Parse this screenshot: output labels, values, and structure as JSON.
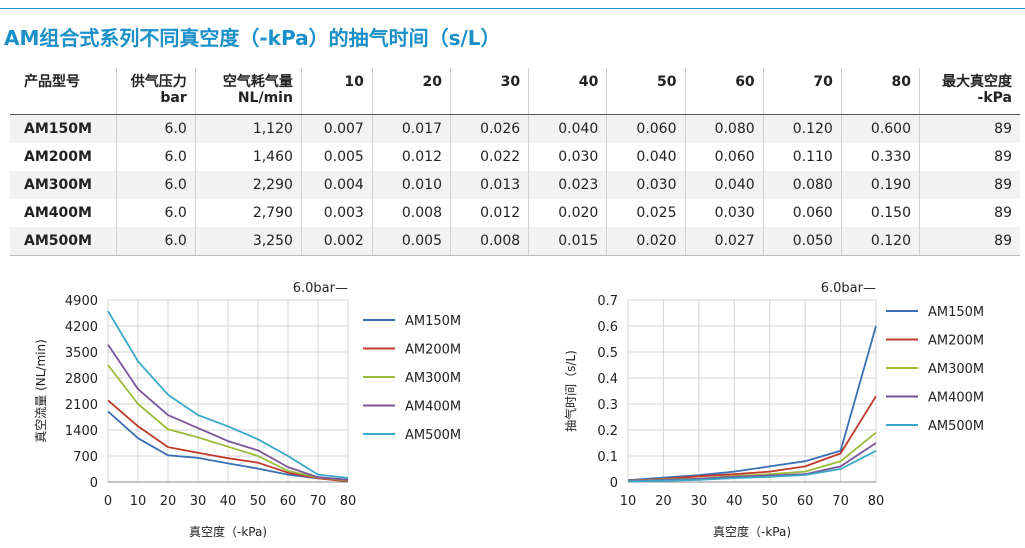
{
  "title": "AM组合式系列不同真空度（-kPa）的抽气时间（s/L）",
  "table": {
    "headers": [
      [
        "产品型号"
      ],
      [
        "供气压力",
        "bar"
      ],
      [
        "空气耗气量",
        "NL/min"
      ],
      [
        "10"
      ],
      [
        "20"
      ],
      [
        "30"
      ],
      [
        "40"
      ],
      [
        "50"
      ],
      [
        "60"
      ],
      [
        "70"
      ],
      [
        "80"
      ],
      [
        "最大真空度",
        "-kPa"
      ]
    ],
    "rows": [
      [
        "AM150M",
        "6.0",
        "1,120",
        "0.007",
        "0.017",
        "0.026",
        "0.040",
        "0.060",
        "0.080",
        "0.120",
        "0.600",
        "89"
      ],
      [
        "AM200M",
        "6.0",
        "1,460",
        "0.005",
        "0.012",
        "0.022",
        "0.030",
        "0.040",
        "0.060",
        "0.110",
        "0.330",
        "89"
      ],
      [
        "AM300M",
        "6.0",
        "2,290",
        "0.004",
        "0.010",
        "0.013",
        "0.023",
        "0.030",
        "0.040",
        "0.080",
        "0.190",
        "89"
      ],
      [
        "AM400M",
        "6.0",
        "2,790",
        "0.003",
        "0.008",
        "0.012",
        "0.020",
        "0.025",
        "0.030",
        "0.060",
        "0.150",
        "89"
      ],
      [
        "AM500M",
        "6.0",
        "3,250",
        "0.002",
        "0.005",
        "0.008",
        "0.015",
        "0.020",
        "0.027",
        "0.050",
        "0.120",
        "89"
      ]
    ]
  },
  "chart_data": [
    {
      "type": "line",
      "title": "6.0bar—",
      "xlabel": "真空度（-kPa)",
      "ylabel": "真空流量 (NL/min)",
      "x": [
        0,
        10,
        20,
        30,
        40,
        50,
        60,
        70,
        80
      ],
      "x_ticks": [
        "0",
        "10",
        "20",
        "30",
        "40",
        "50",
        "60",
        "70",
        "80"
      ],
      "xlim": [
        0,
        80
      ],
      "y_ticks": [
        "0",
        "700",
        "1400",
        "2100",
        "2800",
        "3500",
        "4200",
        "4900"
      ],
      "ylim": [
        0,
        4900
      ],
      "grid": true,
      "legend_position": "right",
      "series": [
        {
          "name": "AM150M",
          "color": "#3a6fb5",
          "values": [
            1900,
            1180,
            720,
            650,
            500,
            360,
            200,
            100,
            60
          ]
        },
        {
          "name": "AM200M",
          "color": "#c0392b",
          "values": [
            2200,
            1500,
            940,
            790,
            640,
            520,
            250,
            100,
            20
          ]
        },
        {
          "name": "AM300M",
          "color": "#9bbb3b",
          "values": [
            3150,
            2100,
            1420,
            1200,
            950,
            700,
            300,
            120,
            40
          ]
        },
        {
          "name": "AM400M",
          "color": "#7a5599",
          "values": [
            3700,
            2500,
            1800,
            1450,
            1100,
            850,
            400,
            130,
            60
          ]
        },
        {
          "name": "AM500M",
          "color": "#3aa8c8",
          "values": [
            4600,
            3250,
            2350,
            1800,
            1500,
            1150,
            700,
            200,
            110
          ]
        }
      ]
    },
    {
      "type": "line",
      "title": "6.0bar—",
      "xlabel": "真空度（-kPa)",
      "ylabel": "抽气时间（s/L)",
      "x": [
        10,
        20,
        30,
        40,
        50,
        60,
        70,
        80
      ],
      "x_ticks": [
        "10",
        "20",
        "30",
        "40",
        "50",
        "60",
        "70",
        "80"
      ],
      "xlim": [
        10,
        80
      ],
      "y_ticks": [
        "0",
        "0.1",
        "0.2",
        "0.3",
        "0.4",
        "0.5",
        "0.6",
        "0.7"
      ],
      "ylim": [
        0,
        0.7
      ],
      "grid": true,
      "legend_position": "right",
      "series": [
        {
          "name": "AM150M",
          "color": "#3a6fb5",
          "values": [
            0.007,
            0.017,
            0.026,
            0.04,
            0.06,
            0.08,
            0.12,
            0.6
          ]
        },
        {
          "name": "AM200M",
          "color": "#c0392b",
          "values": [
            0.005,
            0.012,
            0.022,
            0.03,
            0.04,
            0.06,
            0.11,
            0.33
          ]
        },
        {
          "name": "AM300M",
          "color": "#9bbb3b",
          "values": [
            0.004,
            0.01,
            0.013,
            0.023,
            0.03,
            0.04,
            0.08,
            0.19
          ]
        },
        {
          "name": "AM400M",
          "color": "#7a5599",
          "values": [
            0.003,
            0.008,
            0.012,
            0.02,
            0.025,
            0.03,
            0.06,
            0.15
          ]
        },
        {
          "name": "AM500M",
          "color": "#3aa8c8",
          "values": [
            0.002,
            0.005,
            0.008,
            0.015,
            0.02,
            0.027,
            0.05,
            0.12
          ]
        }
      ]
    }
  ]
}
